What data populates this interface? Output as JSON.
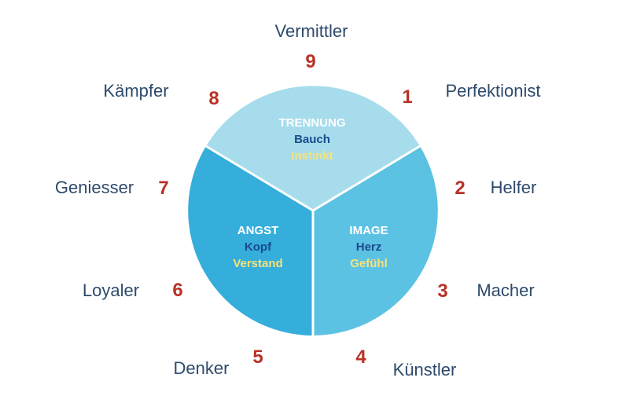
{
  "colors": {
    "segment_top": "#a6dcec",
    "segment_left": "#35aedb",
    "segment_right": "#5cc2e3",
    "divider": "#ffffff",
    "label_text": "#2e4a6b",
    "number_text": "#b83227",
    "title_text": "#ffffff",
    "organ_text": "#1b4a8c",
    "mode_text": "#f7e27a"
  },
  "segments": {
    "top": {
      "title": "TRENNUNG",
      "organ": "Bauch",
      "mode": "Instinkt"
    },
    "left": {
      "title": "ANGST",
      "organ": "Kopf",
      "mode": "Verstand"
    },
    "right": {
      "title": "IMAGE",
      "organ": "Herz",
      "mode": "Gefühl"
    }
  },
  "types": [
    {
      "number": "9",
      "label": "Vermittler"
    },
    {
      "number": "1",
      "label": "Perfektionist"
    },
    {
      "number": "2",
      "label": "Helfer"
    },
    {
      "number": "3",
      "label": "Macher"
    },
    {
      "number": "4",
      "label": "Künstler"
    },
    {
      "number": "5",
      "label": "Denker"
    },
    {
      "number": "6",
      "label": "Loyaler"
    },
    {
      "number": "7",
      "label": "Geniesser"
    },
    {
      "number": "8",
      "label": "Kämpfer"
    }
  ]
}
